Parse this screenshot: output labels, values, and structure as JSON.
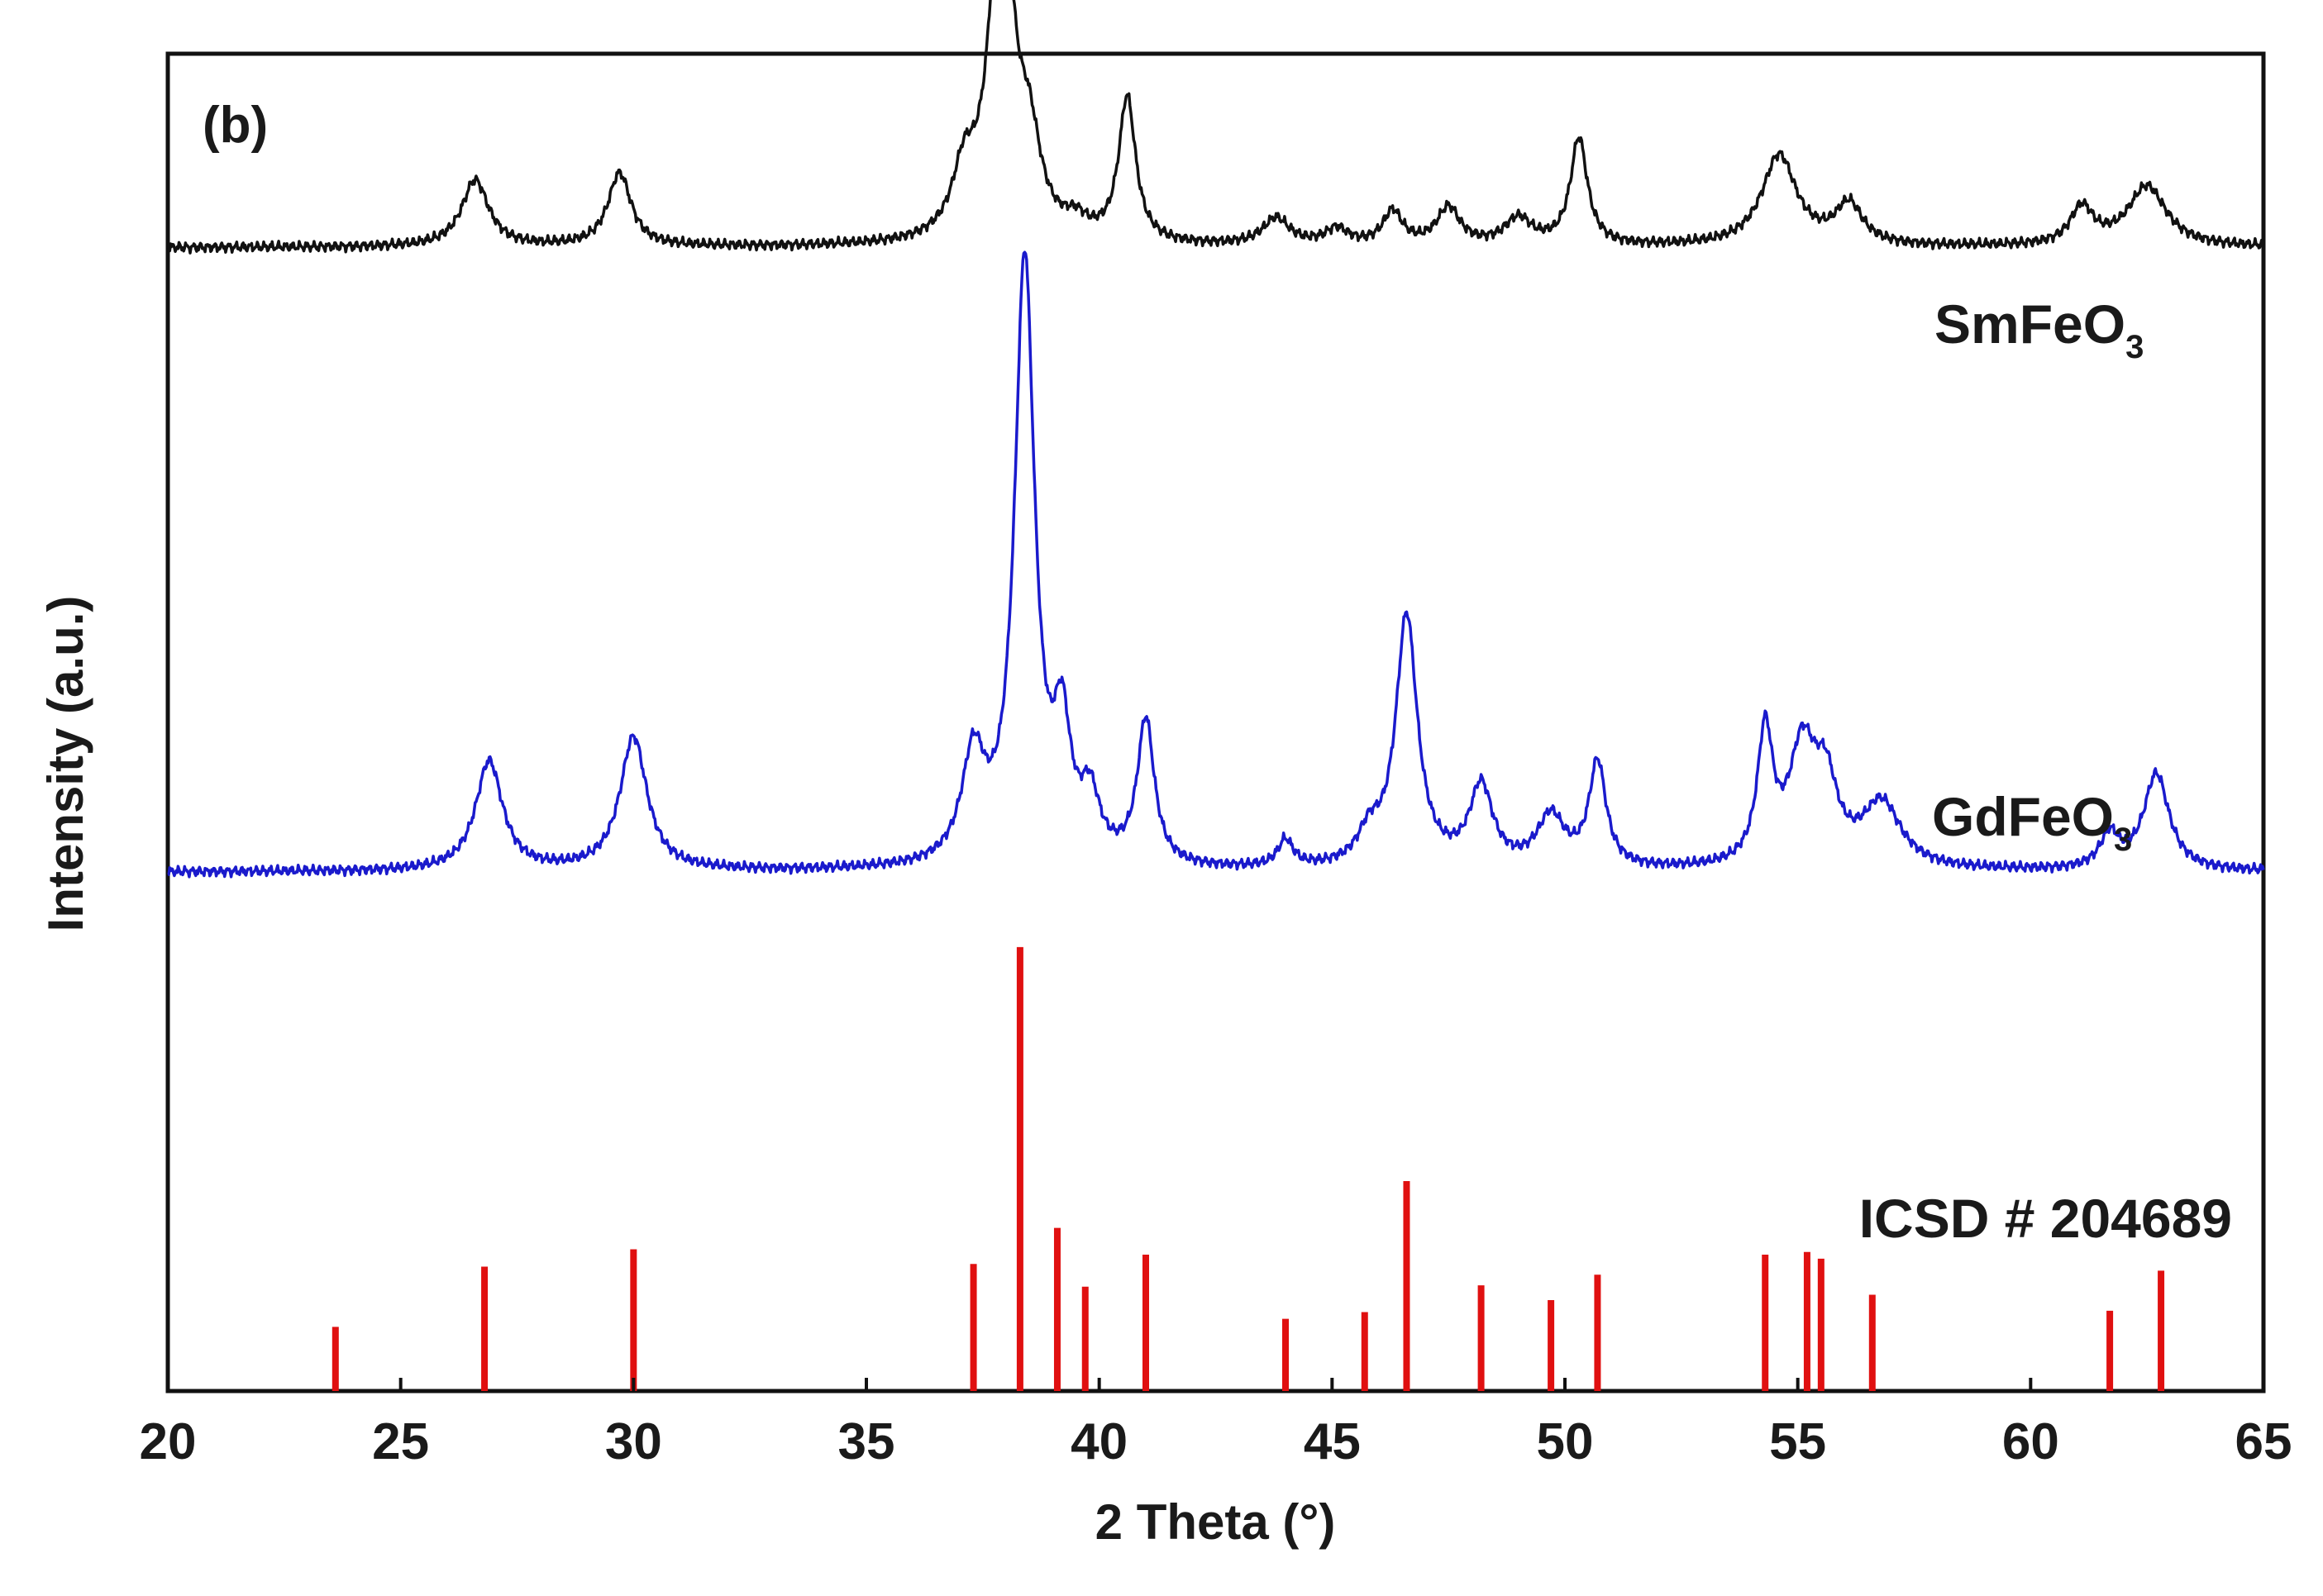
{
  "chart_data": {
    "type": "line",
    "panel_label": "(b)",
    "xlabel": "2 Theta (°)",
    "ylabel": "Intensity (a.u.)",
    "xlim": [
      20,
      65
    ],
    "x_ticks": [
      20,
      25,
      30,
      35,
      40,
      45,
      50,
      55,
      60,
      65
    ],
    "y_ticks_shown": false,
    "grid": false,
    "series": [
      {
        "name": "SmFeO",
        "name_subscript": "3",
        "color": "#111111",
        "style": "line",
        "baseline": 0.855,
        "peaks": [
          {
            "x": 26.6,
            "h": 0.05,
            "w": 0.35
          },
          {
            "x": 29.7,
            "h": 0.055,
            "w": 0.3
          },
          {
            "x": 37.1,
            "h": 0.045,
            "w": 0.3
          },
          {
            "x": 37.9,
            "h": 0.275,
            "w": 0.3
          },
          {
            "x": 38.5,
            "h": 0.06,
            "w": 0.3
          },
          {
            "x": 39.5,
            "h": 0.012,
            "w": 0.3
          },
          {
            "x": 40.6,
            "h": 0.108,
            "w": 0.22
          },
          {
            "x": 43.8,
            "h": 0.02,
            "w": 0.35
          },
          {
            "x": 45.1,
            "h": 0.012,
            "w": 0.3
          },
          {
            "x": 46.3,
            "h": 0.025,
            "w": 0.25
          },
          {
            "x": 47.5,
            "h": 0.028,
            "w": 0.3
          },
          {
            "x": 49.0,
            "h": 0.02,
            "w": 0.35
          },
          {
            "x": 50.3,
            "h": 0.08,
            "w": 0.22
          },
          {
            "x": 54.6,
            "h": 0.068,
            "w": 0.45
          },
          {
            "x": 56.1,
            "h": 0.03,
            "w": 0.35
          },
          {
            "x": 61.1,
            "h": 0.028,
            "w": 0.3
          },
          {
            "x": 62.5,
            "h": 0.045,
            "w": 0.5
          }
        ]
      },
      {
        "name": "GdFeO",
        "name_subscript": "3",
        "color": "#1a1acc",
        "style": "line",
        "baseline": 0.388,
        "peaks": [
          {
            "x": 26.9,
            "h": 0.082,
            "w": 0.35
          },
          {
            "x": 30.0,
            "h": 0.1,
            "w": 0.35
          },
          {
            "x": 37.3,
            "h": 0.078,
            "w": 0.3
          },
          {
            "x": 38.4,
            "h": 0.452,
            "w": 0.26
          },
          {
            "x": 39.2,
            "h": 0.09,
            "w": 0.22
          },
          {
            "x": 39.8,
            "h": 0.045,
            "w": 0.25
          },
          {
            "x": 41.0,
            "h": 0.108,
            "w": 0.22
          },
          {
            "x": 44.0,
            "h": 0.02,
            "w": 0.2
          },
          {
            "x": 45.8,
            "h": 0.022,
            "w": 0.3
          },
          {
            "x": 46.6,
            "h": 0.188,
            "w": 0.28
          },
          {
            "x": 48.2,
            "h": 0.06,
            "w": 0.3
          },
          {
            "x": 49.7,
            "h": 0.038,
            "w": 0.35
          },
          {
            "x": 50.7,
            "h": 0.078,
            "w": 0.22
          },
          {
            "x": 54.3,
            "h": 0.098,
            "w": 0.2
          },
          {
            "x": 55.1,
            "h": 0.085,
            "w": 0.35
          },
          {
            "x": 55.6,
            "h": 0.055,
            "w": 0.3
          },
          {
            "x": 56.8,
            "h": 0.048,
            "w": 0.5
          },
          {
            "x": 61.7,
            "h": 0.025,
            "w": 0.25
          },
          {
            "x": 62.7,
            "h": 0.072,
            "w": 0.33
          }
        ]
      },
      {
        "name": "ICSD # 204689",
        "color": "#e01010",
        "style": "stick",
        "baseline": 0.0,
        "x": [
          23.6,
          26.8,
          30.0,
          37.3,
          38.3,
          39.1,
          39.7,
          41.0,
          44.0,
          45.7,
          46.6,
          48.2,
          49.7,
          50.7,
          54.3,
          55.2,
          55.5,
          56.6,
          61.7,
          62.8
        ],
        "y": [
          0.048,
          0.093,
          0.106,
          0.095,
          0.332,
          0.122,
          0.078,
          0.102,
          0.054,
          0.059,
          0.157,
          0.079,
          0.068,
          0.087,
          0.102,
          0.104,
          0.099,
          0.072,
          0.06,
          0.09
        ]
      }
    ]
  }
}
